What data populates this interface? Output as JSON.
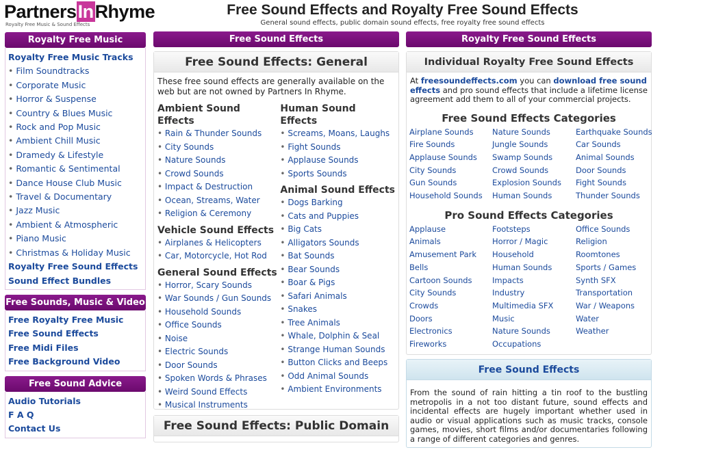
{
  "logo": {
    "brand_a": "Partners",
    "brand_in": "In",
    "brand_b": "Rhyme",
    "tagline": "Royalty Free Music & Sound Effects"
  },
  "header": {
    "title": "Free Sound Effects and Royalty Free Sound Effects",
    "subtitle": "General sound effects, public domain sound effects, free royalty free sound effects"
  },
  "sidebar": {
    "music_title": "Royalty Free Music",
    "music_items": [
      {
        "label": "Royalty Free Music Tracks",
        "bold": true
      },
      {
        "label": "Film Soundtracks"
      },
      {
        "label": "Corporate Music"
      },
      {
        "label": "Horror & Suspense"
      },
      {
        "label": "Country & Blues Music"
      },
      {
        "label": "Rock and Pop Music"
      },
      {
        "label": "Ambient Chill Music"
      },
      {
        "label": "Dramedy & Lifestyle"
      },
      {
        "label": "Romantic & Sentimental"
      },
      {
        "label": "Dance House Club Music"
      },
      {
        "label": "Travel & Documentary"
      },
      {
        "label": "Jazz Music"
      },
      {
        "label": "Ambient & Atmospheric"
      },
      {
        "label": "Piano Music"
      },
      {
        "label": "Christmas & Holiday Music"
      },
      {
        "label": "Royalty Free Sound Effects",
        "bold": true
      },
      {
        "label": "Sound Effect Bundles",
        "bold": true
      }
    ],
    "free_title": "Free Sounds, Music & Video",
    "free_items": [
      "Free Royalty Free Music",
      "Free Sound Effects",
      "Free Midi Files",
      "Free Background Video"
    ],
    "advice_title": "Free Sound Advice",
    "advice_items": [
      "Audio Tutorials",
      "F A Q",
      "Contact Us"
    ]
  },
  "middle": {
    "bar": "Free Sound Effects",
    "title": "Free Sound Effects: General",
    "intro": "These free sound effects are generally available on the web but are not owned by Partners In Rhyme.",
    "left_groups": [
      {
        "heading": "Ambient Sound Effects",
        "items": [
          "Rain & Thunder Sounds",
          "City Sounds",
          "Nature Sounds",
          "Crowd Sounds",
          "Impact & Destruction",
          "Ocean, Streams, Water",
          "Religion & Ceremony"
        ]
      },
      {
        "heading": "Vehicle Sound Effects",
        "items": [
          "Airplanes & Helicopters",
          "Car, Motorcycle, Hot Rod"
        ]
      },
      {
        "heading": "General Sound Effects",
        "items": [
          "Horror, Scary Sounds",
          "War Sounds / Gun Sounds",
          "Household Sounds",
          "Office Sounds",
          "Noise",
          "Electric Sounds",
          "Door Sounds",
          "Spoken Words & Phrases",
          "Weird Sound Effects",
          "Musical Instruments"
        ]
      }
    ],
    "right_groups": [
      {
        "heading": "Human Sound Effects",
        "items": [
          "Screams, Moans, Laughs",
          "Fight Sounds",
          "Applause Sounds",
          "Sports Sounds"
        ]
      },
      {
        "heading": "Animal Sound Effects",
        "items": [
          "Dogs Barking",
          "Cats and Puppies",
          "Big Cats",
          "Alligators Sounds",
          "Bat Sounds",
          "Bear Sounds",
          "Boar & Pigs",
          "Safari Animals",
          "Snakes",
          "Tree Animals",
          "Whale, Dolphin & Seal",
          "Strange Human Sounds",
          "Button Clicks and Beeps",
          "Odd Animal Sounds",
          "Ambient Environments"
        ]
      }
    ],
    "title2": "Free Sound Effects: Public Domain"
  },
  "right": {
    "bar": "Royalty Free Sound Effects",
    "title": "Individual Royalty Free Sound Effects",
    "intro_a": "At ",
    "intro_link1": "freesoundeffects.com",
    "intro_b": " you can ",
    "intro_link2": "download free sound effects",
    "intro_c": " and pro sound effects that include a lifetime license agreement add them to all of your commercial projects.",
    "free_cat_title": "Free Sound Effects Categories",
    "free_cats": [
      "Airplane Sounds",
      "Nature Sounds",
      "Earthquake Sounds",
      "Fire Sounds",
      "Jungle Sounds",
      "Car Sounds",
      "Applause Sounds",
      "Swamp Sounds",
      "Animal Sounds",
      "City Sounds",
      "Crowd Sounds",
      "Door Sounds",
      "Gun Sounds",
      "Explosion Sounds",
      "Fight Sounds",
      "Household Sounds",
      "Human Sounds",
      "Thunder Sounds"
    ],
    "pro_cat_title": "Pro Sound Effects Categories",
    "pro_cats": [
      "Applause",
      "Footsteps",
      "Office Sounds",
      "Animals",
      "Horror / Magic",
      "Religion",
      "Amusement Park",
      "Household",
      "Roomtones",
      "Bells",
      "Human Sounds",
      "Sports / Games",
      "Cartoon Sounds",
      "Impacts",
      "Synth SFX",
      "City Sounds",
      "Industry",
      "Transportation",
      "Crowds",
      "Multimedia SFX",
      "War / Weapons",
      "Doors",
      "Music",
      "Water",
      "Electronics",
      "Nature Sounds",
      "Weather",
      "Fireworks",
      "Occupations",
      ""
    ],
    "fse_title": "Free Sound Effects",
    "fse_text": "From the sound of rain hitting a tin roof to the bustling metropolis in a not too distant future, sound effects and incidental effects are hugely important whether used in audio or visual applications such as music tracks, console games, movies, short films and/or documentaries following a range of different categories and genres."
  }
}
